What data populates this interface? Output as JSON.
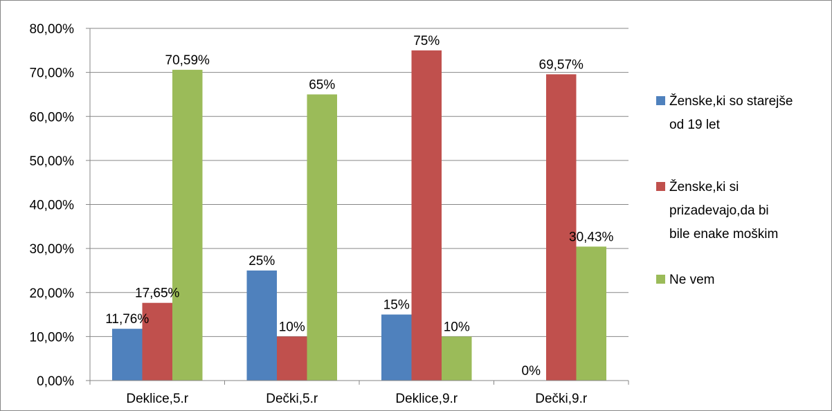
{
  "chart_data": {
    "type": "bar",
    "title": "",
    "xlabel": "",
    "ylabel": "",
    "categories": [
      "Deklice,5.r",
      "Dečki,5.r",
      "Deklice,9.r",
      "Dečki,9.r"
    ],
    "ylim": [
      0,
      80
    ],
    "y_ticks": [
      0,
      10,
      20,
      30,
      40,
      50,
      60,
      70,
      80
    ],
    "y_tick_labels": [
      "0,00%",
      "10,00%",
      "20,00%",
      "30,00%",
      "40,00%",
      "50,00%",
      "60,00%",
      "70,00%",
      "80,00%"
    ],
    "grid": true,
    "legend_position": "right",
    "series": [
      {
        "name": "Ženske,ki so starejše od 19 let",
        "legend_lines": [
          "Ženske,ki so starejše",
          "od 19 let"
        ],
        "color": "#4F81BD",
        "values": [
          11.76,
          25,
          15,
          0
        ],
        "labels": [
          "11,76%",
          "25%",
          "15%",
          "0%"
        ]
      },
      {
        "name": "Ženske,ki si prizadevajo,da bi bile enake moškim",
        "legend_lines": [
          "Ženske,ki si",
          "prizadevajo,da bi",
          "bile enake moškim"
        ],
        "color": "#C0504D",
        "values": [
          17.65,
          10,
          75,
          69.57
        ],
        "labels": [
          "17,65%",
          "10%",
          "75%",
          "69,57%"
        ]
      },
      {
        "name": "Ne vem",
        "legend_lines": [
          "Ne vem"
        ],
        "color": "#9BBB59",
        "values": [
          70.59,
          65,
          10,
          30.43
        ],
        "labels": [
          "70,59%",
          "65%",
          "10%",
          "30,43%"
        ]
      }
    ]
  }
}
